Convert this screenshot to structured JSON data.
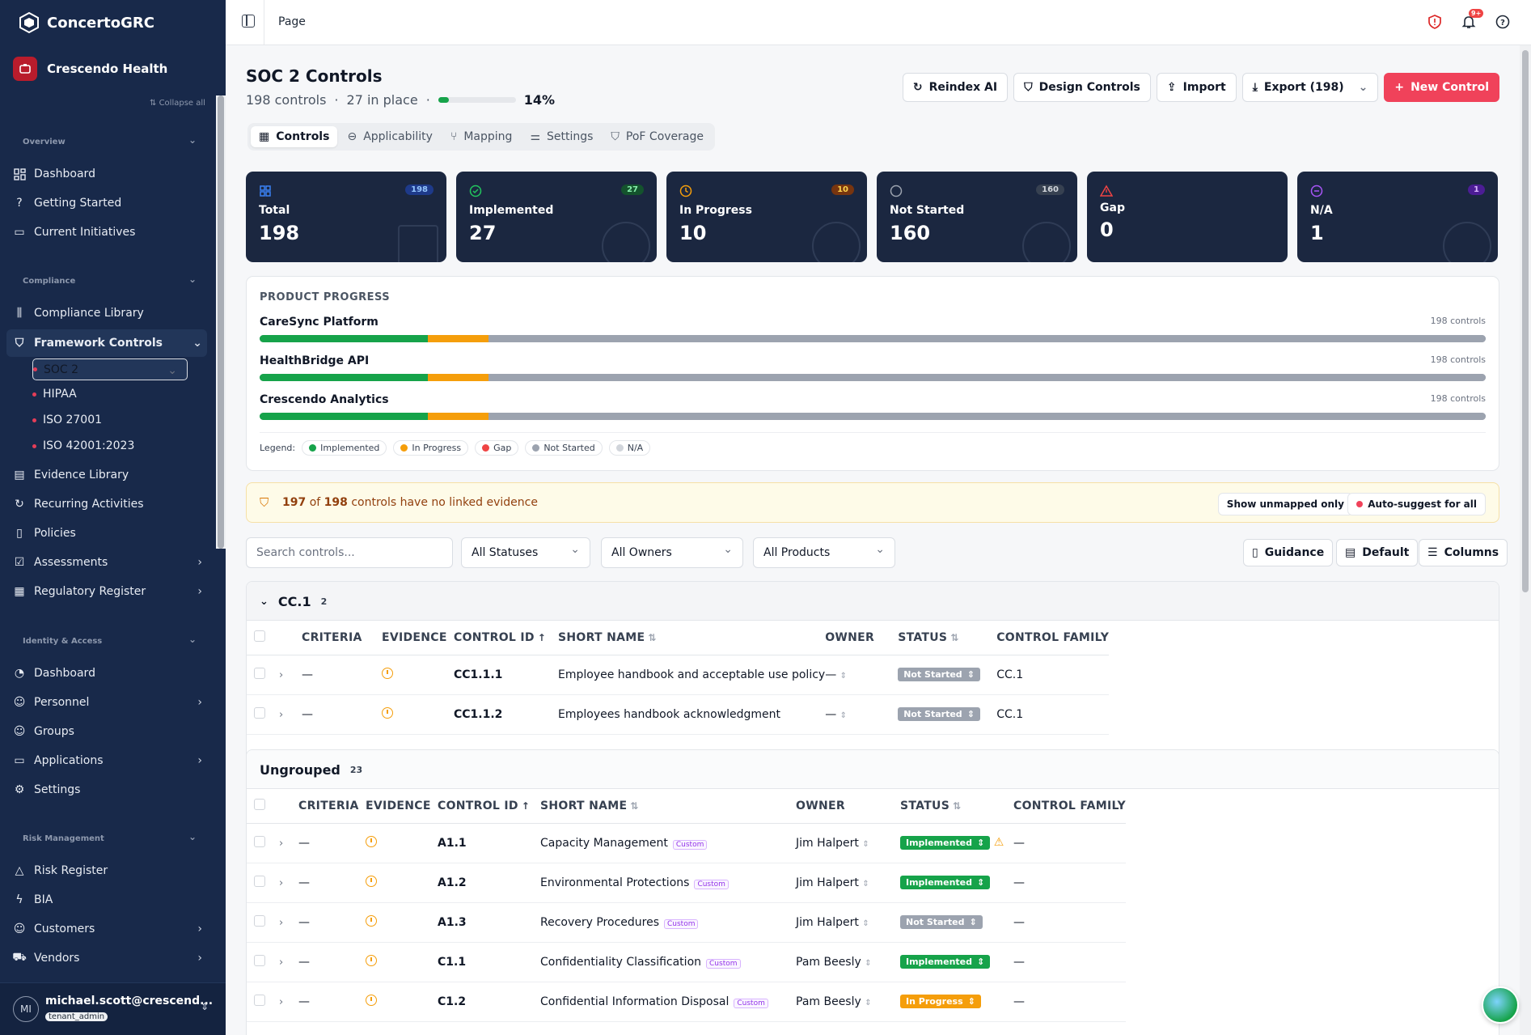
{
  "sidebar": {
    "brand": "ConcertoGRC",
    "tenant": "Crescendo Health",
    "collapse_all": "Collapse all",
    "sections": [
      {
        "title": "Overview",
        "items": [
          "Dashboard",
          "Getting Started",
          "Current Initiatives"
        ]
      },
      {
        "title": "Compliance",
        "items": [
          "Compliance Library",
          "Framework Controls",
          "Evidence Library",
          "Recurring Activities",
          "Policies",
          "Assessments",
          "Regulatory Register"
        ]
      },
      {
        "title": "Identity & Access",
        "items": [
          "Dashboard",
          "Personnel",
          "Groups",
          "Applications",
          "Settings"
        ]
      },
      {
        "title": "Risk Management",
        "items": [
          "Risk Register",
          "BIA",
          "Customers",
          "Vendors"
        ]
      }
    ],
    "frameworks": [
      "SOC 2",
      "HIPAA",
      "ISO 27001",
      "ISO 42001:2023"
    ],
    "user": {
      "initials": "MI",
      "email": "michael.scott@crescend...",
      "role": "tenant_admin"
    }
  },
  "topbar": {
    "breadcrumb": "Page",
    "notif_count": "9+"
  },
  "header": {
    "title": "SOC 2 Controls",
    "controls_count": "198 controls",
    "in_place": "27 in place",
    "progress_pct": "14%",
    "progress_value": 0.14,
    "buttons": {
      "reindex": "Reindex AI",
      "design": "Design Controls",
      "import": "Import",
      "export": "Export (198)",
      "new": "New Control"
    }
  },
  "tabs": [
    "Controls",
    "Applicability",
    "Mapping",
    "Settings",
    "PoF Coverage"
  ],
  "stats": [
    {
      "label": "Total",
      "value": "198",
      "badge": "198",
      "color": "#3b82f6"
    },
    {
      "label": "Implemented",
      "value": "27",
      "badge": "27",
      "color": "#22c55e"
    },
    {
      "label": "In Progress",
      "value": "10",
      "badge": "10",
      "color": "#f59e0b"
    },
    {
      "label": "Not Started",
      "value": "160",
      "badge": "160",
      "color": "#9ca3af"
    },
    {
      "label": "Gap",
      "value": "0",
      "badge": "",
      "color": "#ef4444"
    },
    {
      "label": "N/A",
      "value": "1",
      "badge": "1",
      "color": "#a855f7"
    }
  ],
  "product_progress": {
    "title": "PRODUCT PROGRESS",
    "products": [
      {
        "name": "CareSync Platform",
        "count": "198 controls",
        "implemented": 0.137,
        "in_progress": 0.05
      },
      {
        "name": "HealthBridge API",
        "count": "198 controls",
        "implemented": 0.137,
        "in_progress": 0.05
      },
      {
        "name": "Crescendo Analytics",
        "count": "198 controls",
        "implemented": 0.137,
        "in_progress": 0.05
      }
    ],
    "legend_label": "Legend:",
    "legend": [
      {
        "name": "Implemented",
        "color": "#16a34a"
      },
      {
        "name": "In Progress",
        "color": "#f59e0b"
      },
      {
        "name": "Gap",
        "color": "#ef4444"
      },
      {
        "name": "Not Started",
        "color": "#9ca3af"
      },
      {
        "name": "N/A",
        "color": "#d1d5db"
      }
    ]
  },
  "warning": {
    "count": "197",
    "of": "of",
    "total": "198",
    "text": "controls have no linked evidence",
    "show_unmapped": "Show unmapped only",
    "auto_suggest": "Auto-suggest for all"
  },
  "filters": {
    "search_placeholder": "Search controls...",
    "status": "All Statuses",
    "owners": "All Owners",
    "products": "All Products",
    "guidance": "Guidance",
    "default": "Default",
    "columns": "Columns"
  },
  "columns": [
    "CRITERIA",
    "EVIDENCE",
    "CONTROL ID",
    "SHORT NAME",
    "OWNER",
    "STATUS",
    "CONTROL FAMILY"
  ],
  "groups": [
    {
      "name": "CC.1",
      "count": "2",
      "rows": [
        {
          "criteria": "—",
          "id": "CC1.1.1",
          "name": "Employee handbook and acceptable use policy",
          "custom": false,
          "owner": "—",
          "status": "Not Started",
          "family": "CC.1"
        },
        {
          "criteria": "—",
          "id": "CC1.1.2",
          "name": "Employees handbook acknowledgment",
          "custom": false,
          "owner": "—",
          "status": "Not Started",
          "family": "CC.1"
        }
      ]
    },
    {
      "name": "Ungrouped",
      "count": "23",
      "rows": [
        {
          "criteria": "—",
          "id": "A1.1",
          "name": "Capacity Management",
          "custom": true,
          "owner": "Jim Halpert",
          "status": "Implemented",
          "family": "—",
          "warn": true
        },
        {
          "criteria": "—",
          "id": "A1.2",
          "name": "Environmental Protections",
          "custom": true,
          "owner": "Jim Halpert",
          "status": "Implemented",
          "family": "—"
        },
        {
          "criteria": "—",
          "id": "A1.3",
          "name": "Recovery Procedures",
          "custom": true,
          "owner": "Jim Halpert",
          "status": "Not Started",
          "family": "—"
        },
        {
          "criteria": "—",
          "id": "C1.1",
          "name": "Confidentiality Classification",
          "custom": true,
          "owner": "Pam Beesly",
          "status": "Implemented",
          "family": "—"
        },
        {
          "criteria": "—",
          "id": "C1.2",
          "name": "Confidential Information Disposal",
          "custom": true,
          "owner": "Pam Beesly",
          "status": "In Progress",
          "family": "—"
        }
      ]
    }
  ],
  "custom_label": "Custom"
}
